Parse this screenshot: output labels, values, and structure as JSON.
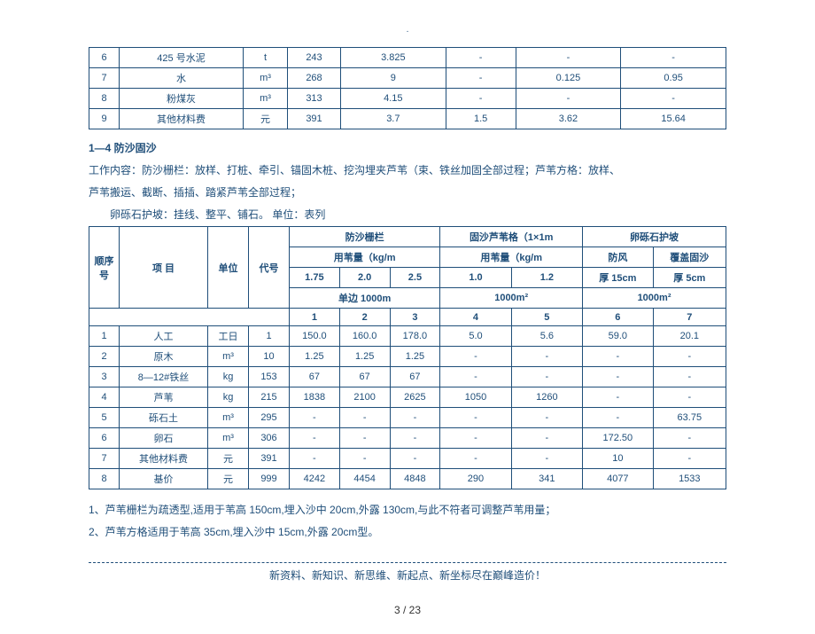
{
  "top_table": {
    "rows": [
      [
        "6",
        "425 号水泥",
        "t",
        "243",
        "3.825",
        "-",
        "-",
        "-"
      ],
      [
        "7",
        "水",
        "m³",
        "268",
        "9",
        "-",
        "0.125",
        "0.95"
      ],
      [
        "8",
        "粉煤灰",
        "m³",
        "313",
        "4.15",
        "-",
        "-",
        "-"
      ],
      [
        "9",
        "其他材料费",
        "元",
        "391",
        "3.7",
        "1.5",
        "3.62",
        "15.64"
      ]
    ]
  },
  "section": {
    "title": "1—4  防沙固沙",
    "p1": "工作内容：防沙栅栏：放样、打桩、牵引、锚固木桩、挖沟埋夹芦苇（束、铁丝加固全部过程；芦苇方格：放样、",
    "p2": "芦苇搬运、截断、插插、踏紧芦苇全部过程；",
    "p3": "卵砾石护坡：挂线、整平、铺石。    单位：表列"
  },
  "table2": {
    "headers": {
      "seq": "顺序号",
      "item": "项 目",
      "unit": "单位",
      "code": "代号",
      "g1": "防沙栅栏",
      "g2": "固沙芦苇格（1×1m",
      "g3": "卵砾石护坡",
      "sub1": "用苇量（kg/m",
      "sub2": "用苇量（kg/m",
      "sub31": "防风",
      "sub32": "覆盖固沙",
      "v1": "1.75",
      "v2": "2.0",
      "v3": "2.5",
      "v4": "1.0",
      "v5": "1.2",
      "v6": "厚 15cm",
      "v7": "厚 5cm",
      "span1": "单边 1000m",
      "span2": "1000m²",
      "span3": "1000m²",
      "c1": "1",
      "c2": "2",
      "c3": "3",
      "c4": "4",
      "c5": "5",
      "c6": "6",
      "c7": "7"
    },
    "rows": [
      [
        "1",
        "人工",
        "工日",
        "1",
        "150.0",
        "160.0",
        "178.0",
        "5.0",
        "5.6",
        "59.0",
        "20.1"
      ],
      [
        "2",
        "原木",
        "m³",
        "10",
        "1.25",
        "1.25",
        "1.25",
        "-",
        "-",
        "-",
        "-"
      ],
      [
        "3",
        "8—12#铁丝",
        "kg",
        "153",
        "67",
        "67",
        "67",
        "-",
        "-",
        "-",
        "-"
      ],
      [
        "4",
        "芦苇",
        "kg",
        "215",
        "1838",
        "2100",
        "2625",
        "1050",
        "1260",
        "-",
        "-"
      ],
      [
        "5",
        "砾石土",
        "m³",
        "295",
        "-",
        "-",
        "-",
        "-",
        "-",
        "-",
        "63.75"
      ],
      [
        "6",
        "卵石",
        "m³",
        "306",
        "-",
        "-",
        "-",
        "-",
        "-",
        "172.50",
        "-"
      ],
      [
        "7",
        "其他材料费",
        "元",
        "391",
        "-",
        "-",
        "-",
        "-",
        "-",
        "10",
        "-"
      ],
      [
        "8",
        "基价",
        "元",
        "999",
        "4242",
        "4454",
        "4848",
        "290",
        "341",
        "4077",
        "1533"
      ]
    ]
  },
  "notes": {
    "n1": "1、芦苇栅栏为疏透型,适用于苇高 150cm,埋入沙中 20cm,外露 130cm,与此不符者可调整芦苇用量；",
    "n2": "2、芦苇方格适用于苇高 35cm,埋入沙中 15cm,外露 20cm型。"
  },
  "footer": {
    "tagline": "新资料、新知识、新思维、新起点、新坐标尽在巅峰造价！",
    "page": "3  / 23"
  },
  "colors": {
    "primary": "#1f4e79",
    "bg": "#ffffff"
  }
}
